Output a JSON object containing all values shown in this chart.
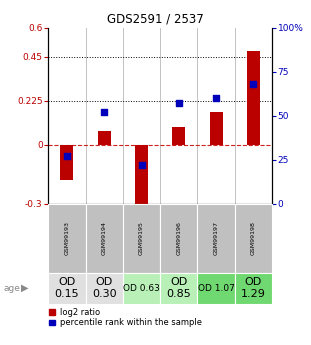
{
  "title": "GDS2591 / 2537",
  "samples": [
    "GSM99193",
    "GSM99194",
    "GSM99195",
    "GSM99196",
    "GSM99197",
    "GSM99198"
  ],
  "log2_ratio": [
    -0.18,
    0.07,
    -0.37,
    0.09,
    0.17,
    0.48
  ],
  "percentile_rank": [
    27,
    52,
    22,
    57,
    60,
    68
  ],
  "ylim_left": [
    -0.3,
    0.6
  ],
  "ylim_right": [
    0,
    100
  ],
  "yticks_left": [
    -0.3,
    0,
    0.225,
    0.45,
    0.6
  ],
  "yticks_right": [
    0,
    25,
    50,
    75,
    100
  ],
  "hlines": [
    0.225,
    0.45
  ],
  "bar_color": "#bb0000",
  "dot_color": "#0000bb",
  "zero_line_color": "#cc2222",
  "age_labels": [
    "OD\n0.15",
    "OD\n0.30",
    "OD 0.63",
    "OD\n0.85",
    "OD 1.07",
    "OD\n1.29"
  ],
  "age_bg_colors": [
    "#e0e0e0",
    "#e0e0e0",
    "#b8f0b8",
    "#b8f0b8",
    "#70d870",
    "#70d870"
  ],
  "age_font_sizes": [
    8,
    8,
    6.5,
    8,
    6.5,
    8
  ],
  "sample_bg_color": "#c0c0c0",
  "legend_red": "log2 ratio",
  "legend_blue": "percentile rank within the sample"
}
